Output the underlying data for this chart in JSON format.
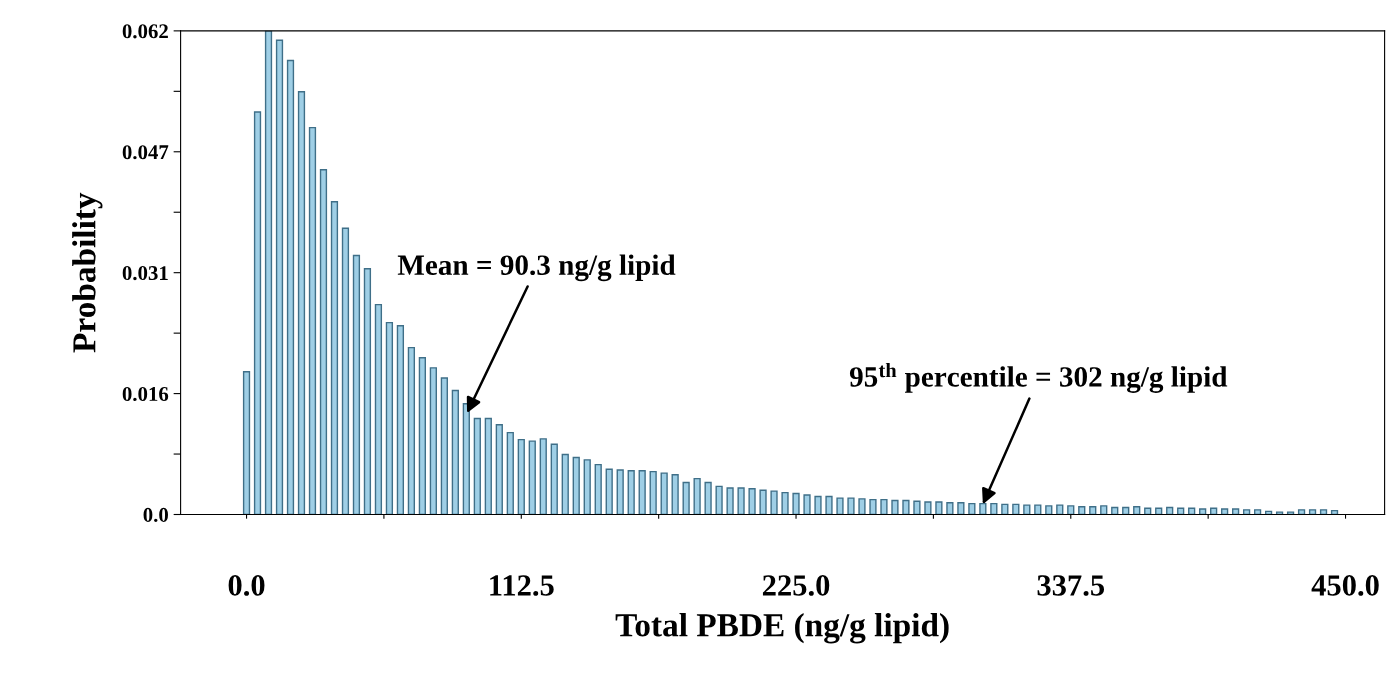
{
  "chart_data": {
    "type": "bar",
    "xlabel": "Total PBDE (ng/g lipid)",
    "ylabel": "Probability",
    "x": [
      0,
      4.5,
      9,
      13.5,
      18,
      22.5,
      27,
      31.5,
      36,
      40.5,
      45,
      49.5,
      54,
      58.5,
      63,
      67.5,
      72,
      76.5,
      81,
      85.5,
      90,
      94.5,
      99,
      103.5,
      108,
      112.5,
      117,
      121.5,
      126,
      130.5,
      135,
      139.5,
      144,
      148.5,
      153,
      157.5,
      162,
      166.5,
      171,
      175.5,
      180,
      184.5,
      189,
      193.5,
      198,
      202.5,
      207,
      211.5,
      216,
      220.5,
      225,
      229.5,
      234,
      238.5,
      243,
      247.5,
      252,
      256.5,
      261,
      265.5,
      270,
      274.5,
      279,
      283.5,
      288,
      292.5,
      297,
      301.5,
      306,
      310.5,
      315,
      319.5,
      324,
      328.5,
      333,
      337.5,
      342,
      346.5,
      351,
      355.5,
      360,
      364.5,
      369,
      373.5,
      378,
      382.5,
      387,
      391.5,
      396,
      400.5,
      405,
      409.5,
      414,
      418.5,
      423,
      427.5,
      432,
      436.5,
      441,
      445.5
    ],
    "values": [
      0.0183,
      0.0516,
      0.062,
      0.0608,
      0.0582,
      0.0542,
      0.0496,
      0.0442,
      0.0401,
      0.0367,
      0.0332,
      0.0315,
      0.0269,
      0.0246,
      0.0242,
      0.0214,
      0.0201,
      0.0188,
      0.0175,
      0.0159,
      0.0142,
      0.0123,
      0.0123,
      0.0115,
      0.0105,
      0.0096,
      0.0094,
      0.0097,
      0.009,
      0.0077,
      0.0073,
      0.007,
      0.0064,
      0.0058,
      0.0057,
      0.0056,
      0.0056,
      0.0055,
      0.0053,
      0.0051,
      0.0041,
      0.0046,
      0.0041,
      0.0036,
      0.0034,
      0.0034,
      0.0033,
      0.0031,
      0.003,
      0.0028,
      0.0027,
      0.0025,
      0.0023,
      0.0023,
      0.0021,
      0.0021,
      0.002,
      0.0019,
      0.0019,
      0.0018,
      0.0018,
      0.0017,
      0.0016,
      0.0016,
      0.0015,
      0.0015,
      0.0014,
      0.0014,
      0.0014,
      0.0013,
      0.0013,
      0.0012,
      0.0012,
      0.0011,
      0.0012,
      0.0011,
      0.001,
      0.001,
      0.0011,
      0.0009,
      0.0009,
      0.001,
      0.0008,
      0.0008,
      0.0009,
      0.0008,
      0.0008,
      0.0007,
      0.0008,
      0.0007,
      0.0007,
      0.0006,
      0.0006,
      0.0004,
      0.0003,
      0.0003,
      0.0006,
      0.0006,
      0.0006,
      0.0005
    ],
    "color": "#9fcfe6",
    "xlim": [
      -27,
      466
    ],
    "ylim": [
      0,
      0.062
    ],
    "xticks": [
      {
        "value": 0,
        "label": "0.0"
      },
      {
        "value": 56.25,
        "label": null
      },
      112.5,
      {
        "value": 168.75,
        "label": null
      },
      {
        "value": 225,
        "label": "225.0"
      },
      {
        "value": 281.25,
        "label": null
      },
      337.5,
      {
        "value": 393.75,
        "label": null
      },
      {
        "value": 450,
        "label": "450.0"
      }
    ],
    "yticks": [
      {
        "value": 0,
        "label": "0.0"
      },
      {
        "value": 0.00775,
        "label": null
      },
      {
        "value": 0.0155,
        "label": "0.016"
      },
      {
        "value": 0.02325,
        "label": null
      },
      0.031,
      {
        "value": 0.03875,
        "label": null
      },
      {
        "value": 0.0465,
        "label": "0.047"
      },
      {
        "value": 0.05425,
        "label": null
      },
      0.062
    ],
    "grid": false,
    "annotations": [
      {
        "text": "Mean = 90.3 ng/g lipid",
        "x": 90.3,
        "y": 0.013
      },
      {
        "text": "95$^{th}$ percentile = 302 ng/g lipid",
        "x": 301.5,
        "y": 0.0013
      }
    ]
  }
}
